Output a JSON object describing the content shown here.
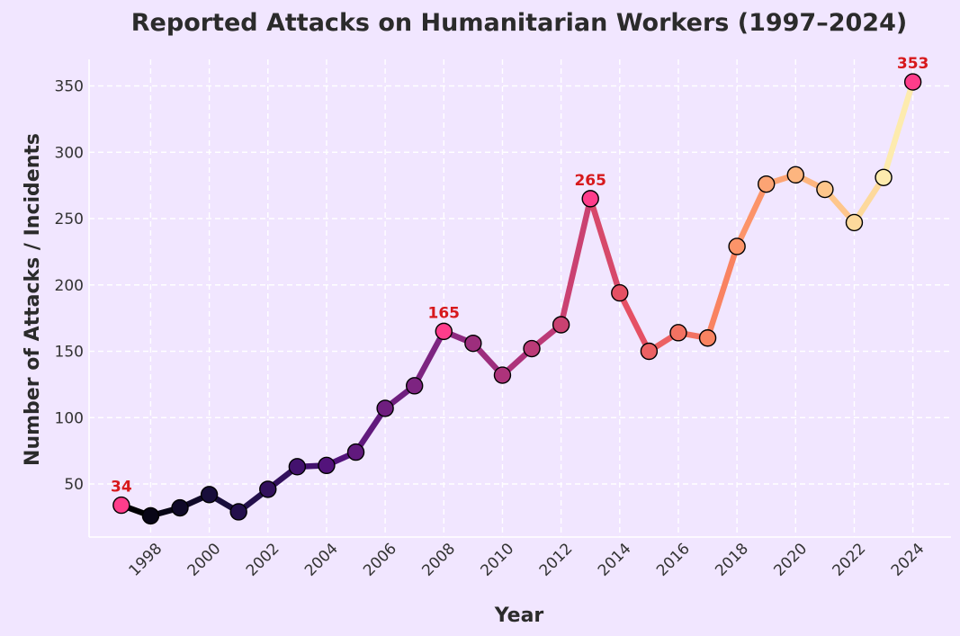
{
  "colors": {
    "background": "#f1e6ff",
    "grid": "#ffffff",
    "highlight_marker": "#ff3d8b",
    "annotation_text": "#d7191c",
    "marker_edge": "#000000"
  },
  "chart_data": {
    "type": "line",
    "title": "Reported Attacks on Humanitarian Workers (1997–2024)",
    "xlabel": "Year",
    "ylabel": "Number of Attacks / Incidents",
    "xlim": [
      1995.9,
      2025.3
    ],
    "ylim": [
      10,
      370
    ],
    "x_ticks": [
      1998,
      2000,
      2002,
      2004,
      2006,
      2008,
      2010,
      2012,
      2014,
      2016,
      2018,
      2020,
      2022,
      2024
    ],
    "y_ticks": [
      50,
      100,
      150,
      200,
      250,
      300,
      350
    ],
    "grid": true,
    "colormap": "magma",
    "series": [
      {
        "x": [
          1997,
          1998,
          1999,
          2000,
          2001,
          2002,
          2003,
          2004,
          2005,
          2006,
          2007,
          2008,
          2009,
          2010,
          2011,
          2012,
          2013,
          2014,
          2015,
          2016,
          2017,
          2018,
          2019,
          2020,
          2021,
          2022,
          2023,
          2024
        ],
        "values": [
          34,
          26,
          32,
          42,
          29,
          46,
          63,
          64,
          74,
          107,
          124,
          165,
          156,
          132,
          152,
          170,
          265,
          194,
          150,
          164,
          160,
          229,
          276,
          283,
          272,
          247,
          281,
          353
        ]
      }
    ],
    "annotations": [
      {
        "x": 1997,
        "y": 34,
        "text": "34"
      },
      {
        "x": 2008,
        "y": 165,
        "text": "165"
      },
      {
        "x": 2013,
        "y": 265,
        "text": "265"
      },
      {
        "x": 2024,
        "y": 353,
        "text": "353"
      }
    ]
  }
}
